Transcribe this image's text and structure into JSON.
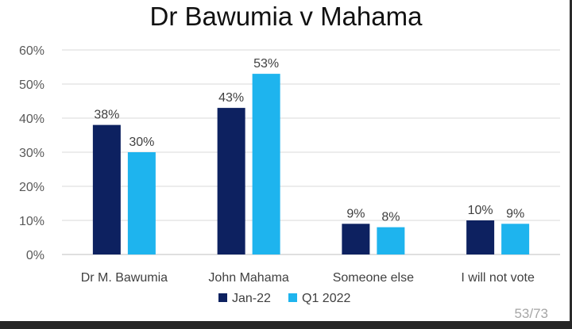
{
  "slide": {
    "page_number": "53/73"
  },
  "chart_data": {
    "type": "bar",
    "title": "Dr Bawumia v Mahama",
    "xlabel": "",
    "ylabel": "",
    "categories": [
      "Dr M. Bawumia",
      "John Mahama",
      "Someone else",
      "I will not vote"
    ],
    "series": [
      {
        "name": "Jan-22",
        "values": [
          38,
          43,
          9,
          10
        ],
        "labels": [
          "38%",
          "43%",
          "9%",
          "10%"
        ],
        "color": "#0d2160"
      },
      {
        "name": "Q1 2022",
        "values": [
          30,
          53,
          8,
          9
        ],
        "labels": [
          "30%",
          "53%",
          "8%",
          "9%"
        ],
        "color": "#1eb4ee"
      }
    ],
    "ylim": [
      0,
      60
    ],
    "yticks": [
      0,
      10,
      20,
      30,
      40,
      50,
      60
    ],
    "ytick_labels": [
      "0%",
      "10%",
      "20%",
      "30%",
      "40%",
      "50%",
      "60%"
    ],
    "grid": true,
    "legend_position": "bottom"
  }
}
